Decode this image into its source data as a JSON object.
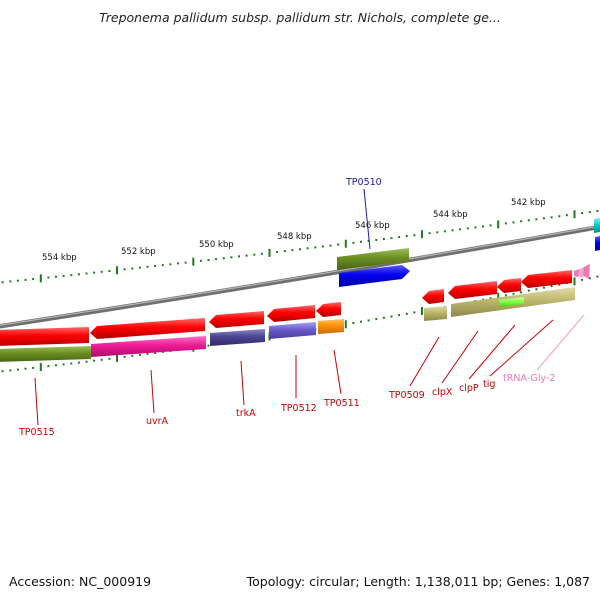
{
  "title": "Treponema pallidum subsp. pallidum str. Nichols, complete ge...",
  "footer": {
    "accession": "Accession: NC_000919",
    "topology": "Topology: circular; Length: 1,138,011 bp; Genes: 1,087"
  },
  "scale_labels": [
    "554 kbp",
    "552 kbp",
    "550 kbp",
    "548 kbp",
    "546 kbp",
    "544 kbp",
    "542 kbp"
  ],
  "gene_labels": [
    {
      "text": "TP0510",
      "color": "#1a1aa8"
    },
    {
      "text": "TP0515",
      "color": "#cc0000"
    },
    {
      "text": "uvrA",
      "color": "#cc0000"
    },
    {
      "text": "trkA",
      "color": "#cc0000"
    },
    {
      "text": "TP0512",
      "color": "#cc0000"
    },
    {
      "text": "TP0511",
      "color": "#cc0000"
    },
    {
      "text": "TP0509",
      "color": "#cc0000"
    },
    {
      "text": "clpX",
      "color": "#cc0000"
    },
    {
      "text": "clpP",
      "color": "#cc0000"
    },
    {
      "text": "tig",
      "color": "#cc0000"
    },
    {
      "text": "tRNA-Gly-2",
      "color": "#e87ab4"
    }
  ],
  "colors": {
    "forward_cds": "#ff0000",
    "gene_olive": "#6b8e23",
    "gene_blue": "#0000ee",
    "backbone": "#888888",
    "tick": "#1e7a1e"
  }
}
